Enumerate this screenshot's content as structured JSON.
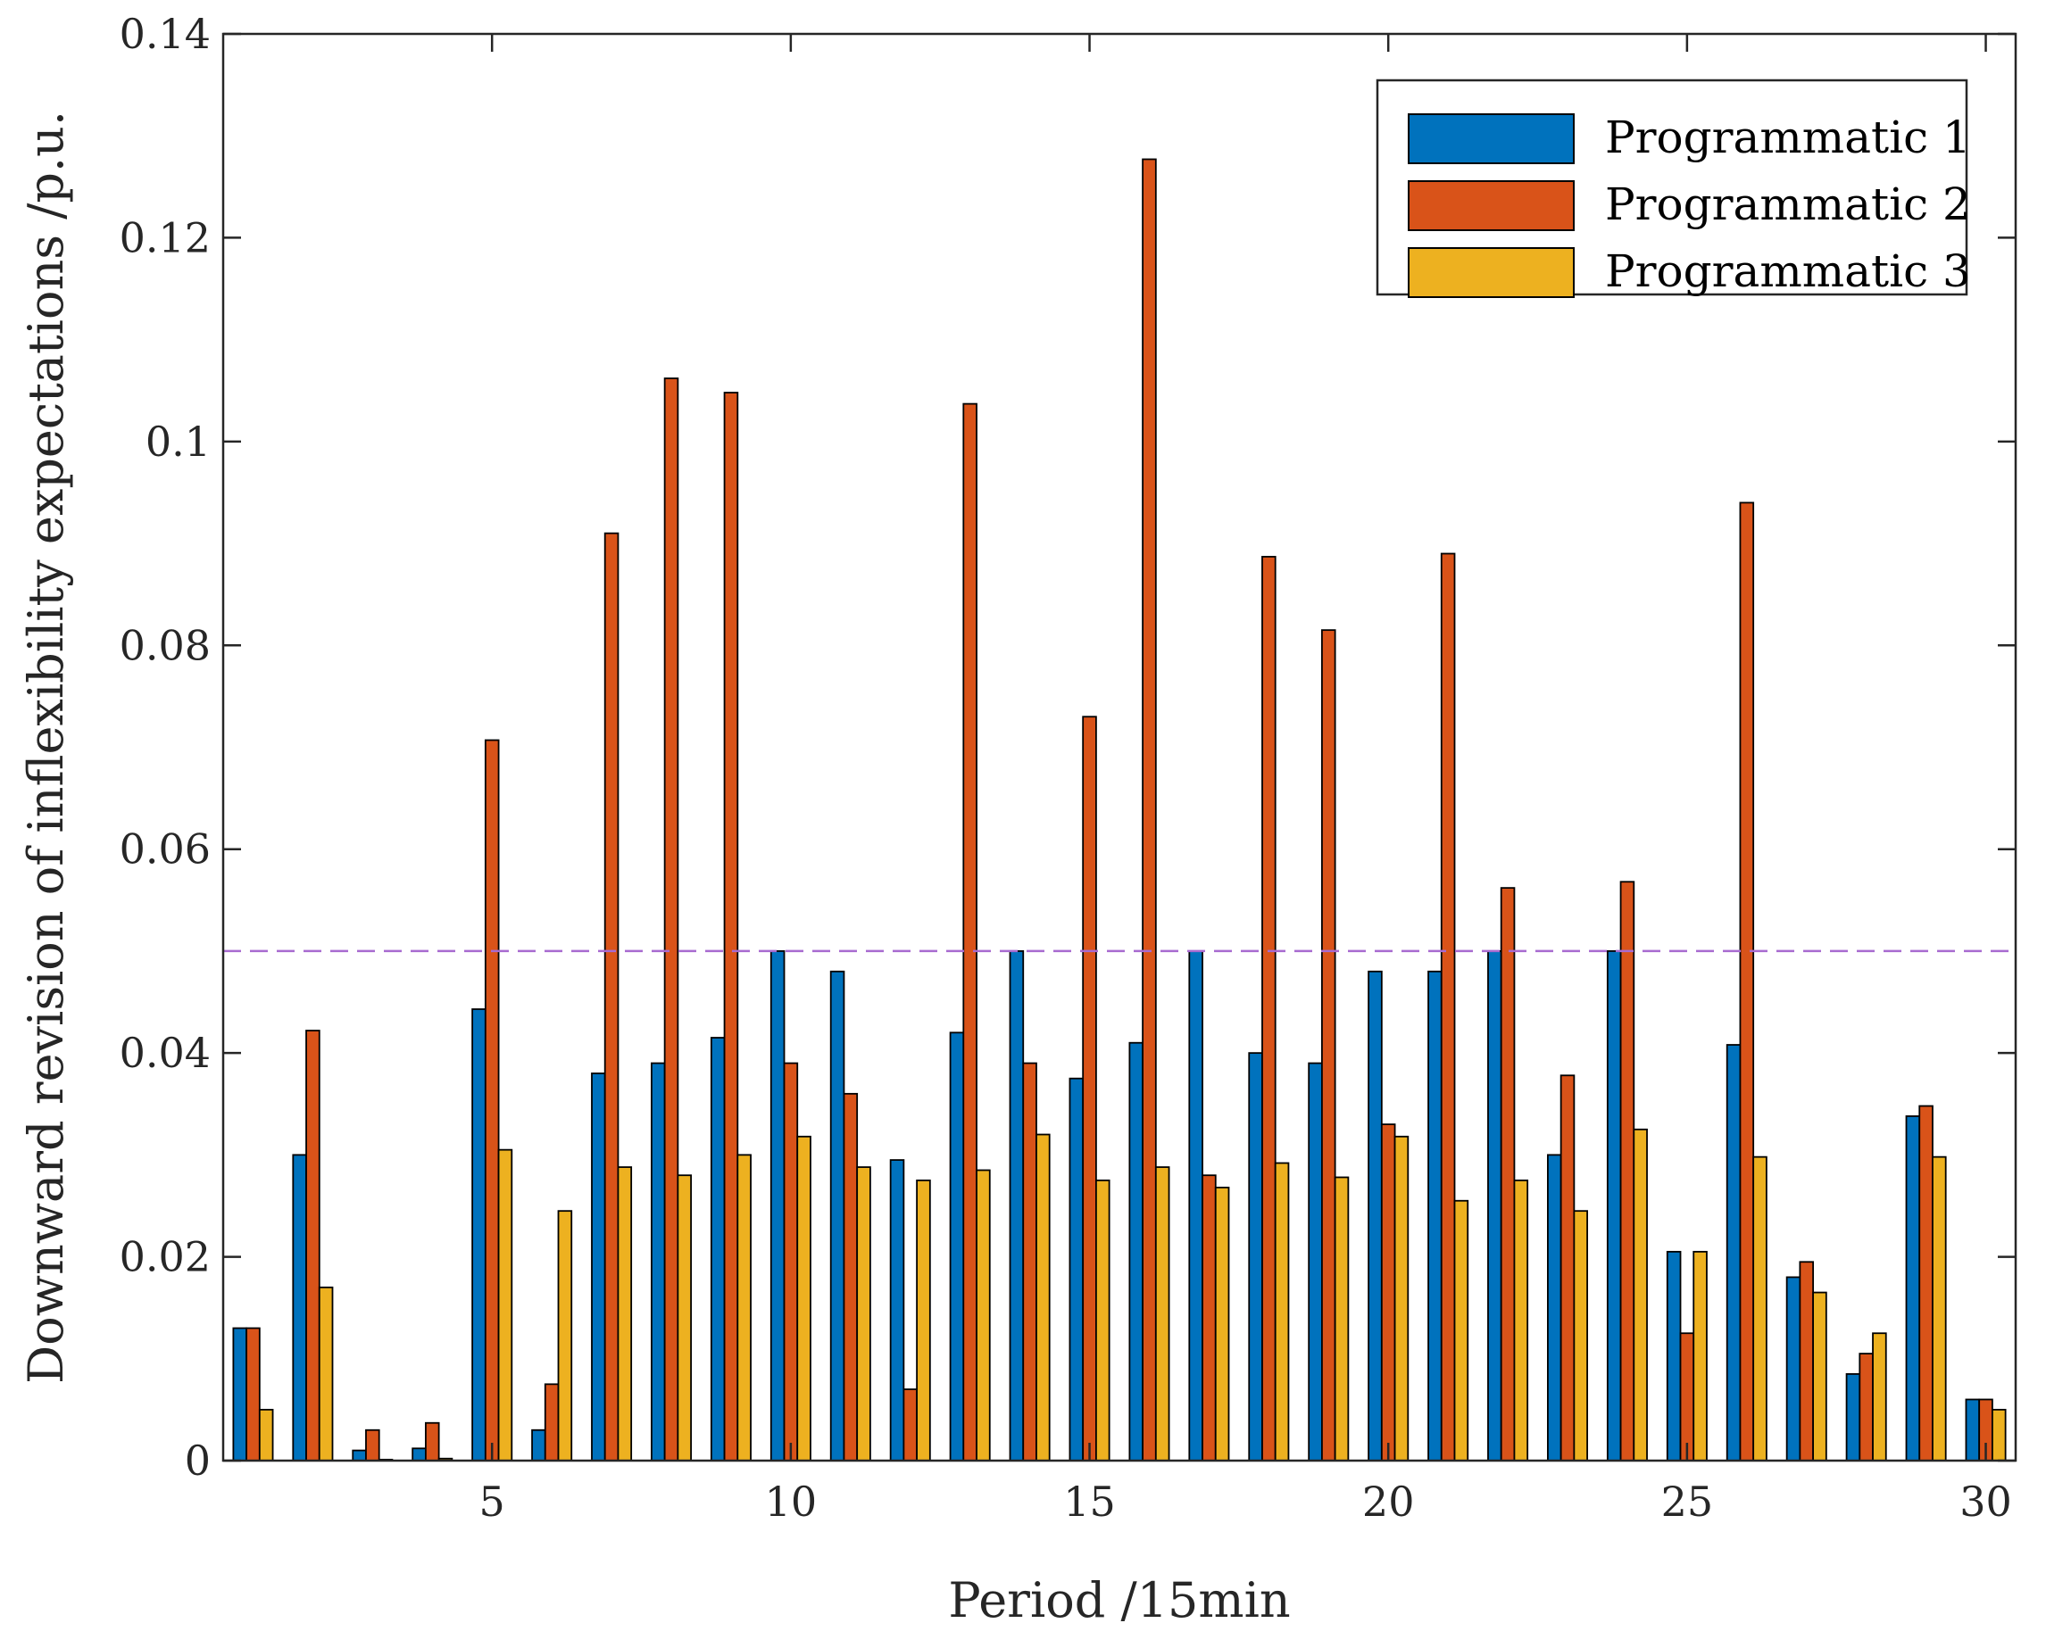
{
  "chart_data": {
    "type": "bar",
    "xlabel": "Period /15min",
    "ylabel": "Downward revision of inflexibility expectations /p.u.",
    "x": [
      1,
      2,
      3,
      4,
      5,
      6,
      7,
      8,
      9,
      10,
      11,
      12,
      13,
      14,
      15,
      16,
      17,
      18,
      19,
      20,
      21,
      22,
      23,
      24,
      25,
      26,
      27,
      28,
      29,
      30
    ],
    "xlim": [
      0.5,
      30.5
    ],
    "ylim": [
      0,
      0.14
    ],
    "xticks": [
      5,
      10,
      15,
      20,
      25,
      30
    ],
    "xtick_labels": [
      "5",
      "10",
      "15",
      "20",
      "25",
      "30"
    ],
    "yticks": [
      0,
      0.02,
      0.04,
      0.06,
      0.08,
      0.1,
      0.12,
      0.14
    ],
    "ytick_labels": [
      "0",
      "0.02",
      "0.04",
      "0.06",
      "0.08",
      "0.1",
      "0.12",
      "0.14"
    ],
    "grid": false,
    "legend_position": "top-right",
    "series": [
      {
        "name": "Programmatic 1",
        "color": "#0072BD",
        "values": [
          0.013,
          0.03,
          0.001,
          0.0012,
          0.0443,
          0.003,
          0.038,
          0.039,
          0.0415,
          0.05,
          0.048,
          0.0295,
          0.042,
          0.05,
          0.0375,
          0.041,
          0.05,
          0.04,
          0.039,
          0.048,
          0.048,
          0.05,
          0.03,
          0.05,
          0.0205,
          0.0408,
          0.018,
          0.0085,
          0.0338,
          0.006
        ]
      },
      {
        "name": "Programmatic 2",
        "color": "#D95319",
        "values": [
          0.013,
          0.0422,
          0.003,
          0.0037,
          0.0707,
          0.0075,
          0.091,
          0.1062,
          0.1048,
          0.039,
          0.036,
          0.007,
          0.1037,
          0.039,
          0.073,
          0.1277,
          0.028,
          0.0887,
          0.0815,
          0.033,
          0.089,
          0.0562,
          0.0378,
          0.0568,
          0.0125,
          0.094,
          0.0195,
          0.0105,
          0.0348,
          0.006
        ]
      },
      {
        "name": "Programmatic 3",
        "color": "#EDB120",
        "values": [
          0.005,
          0.017,
          0.0001,
          0.0002,
          0.0305,
          0.0245,
          0.0288,
          0.028,
          0.03,
          0.0318,
          0.0288,
          0.0275,
          0.0285,
          0.032,
          0.0275,
          0.0288,
          0.0268,
          0.0292,
          0.0278,
          0.0318,
          0.0255,
          0.0275,
          0.0245,
          0.0325,
          0.0205,
          0.0298,
          0.0165,
          0.0125,
          0.0298,
          0.005
        ]
      }
    ],
    "reference_line": {
      "y": 0.05,
      "style": "dashed",
      "color": "#A86BD0"
    }
  }
}
